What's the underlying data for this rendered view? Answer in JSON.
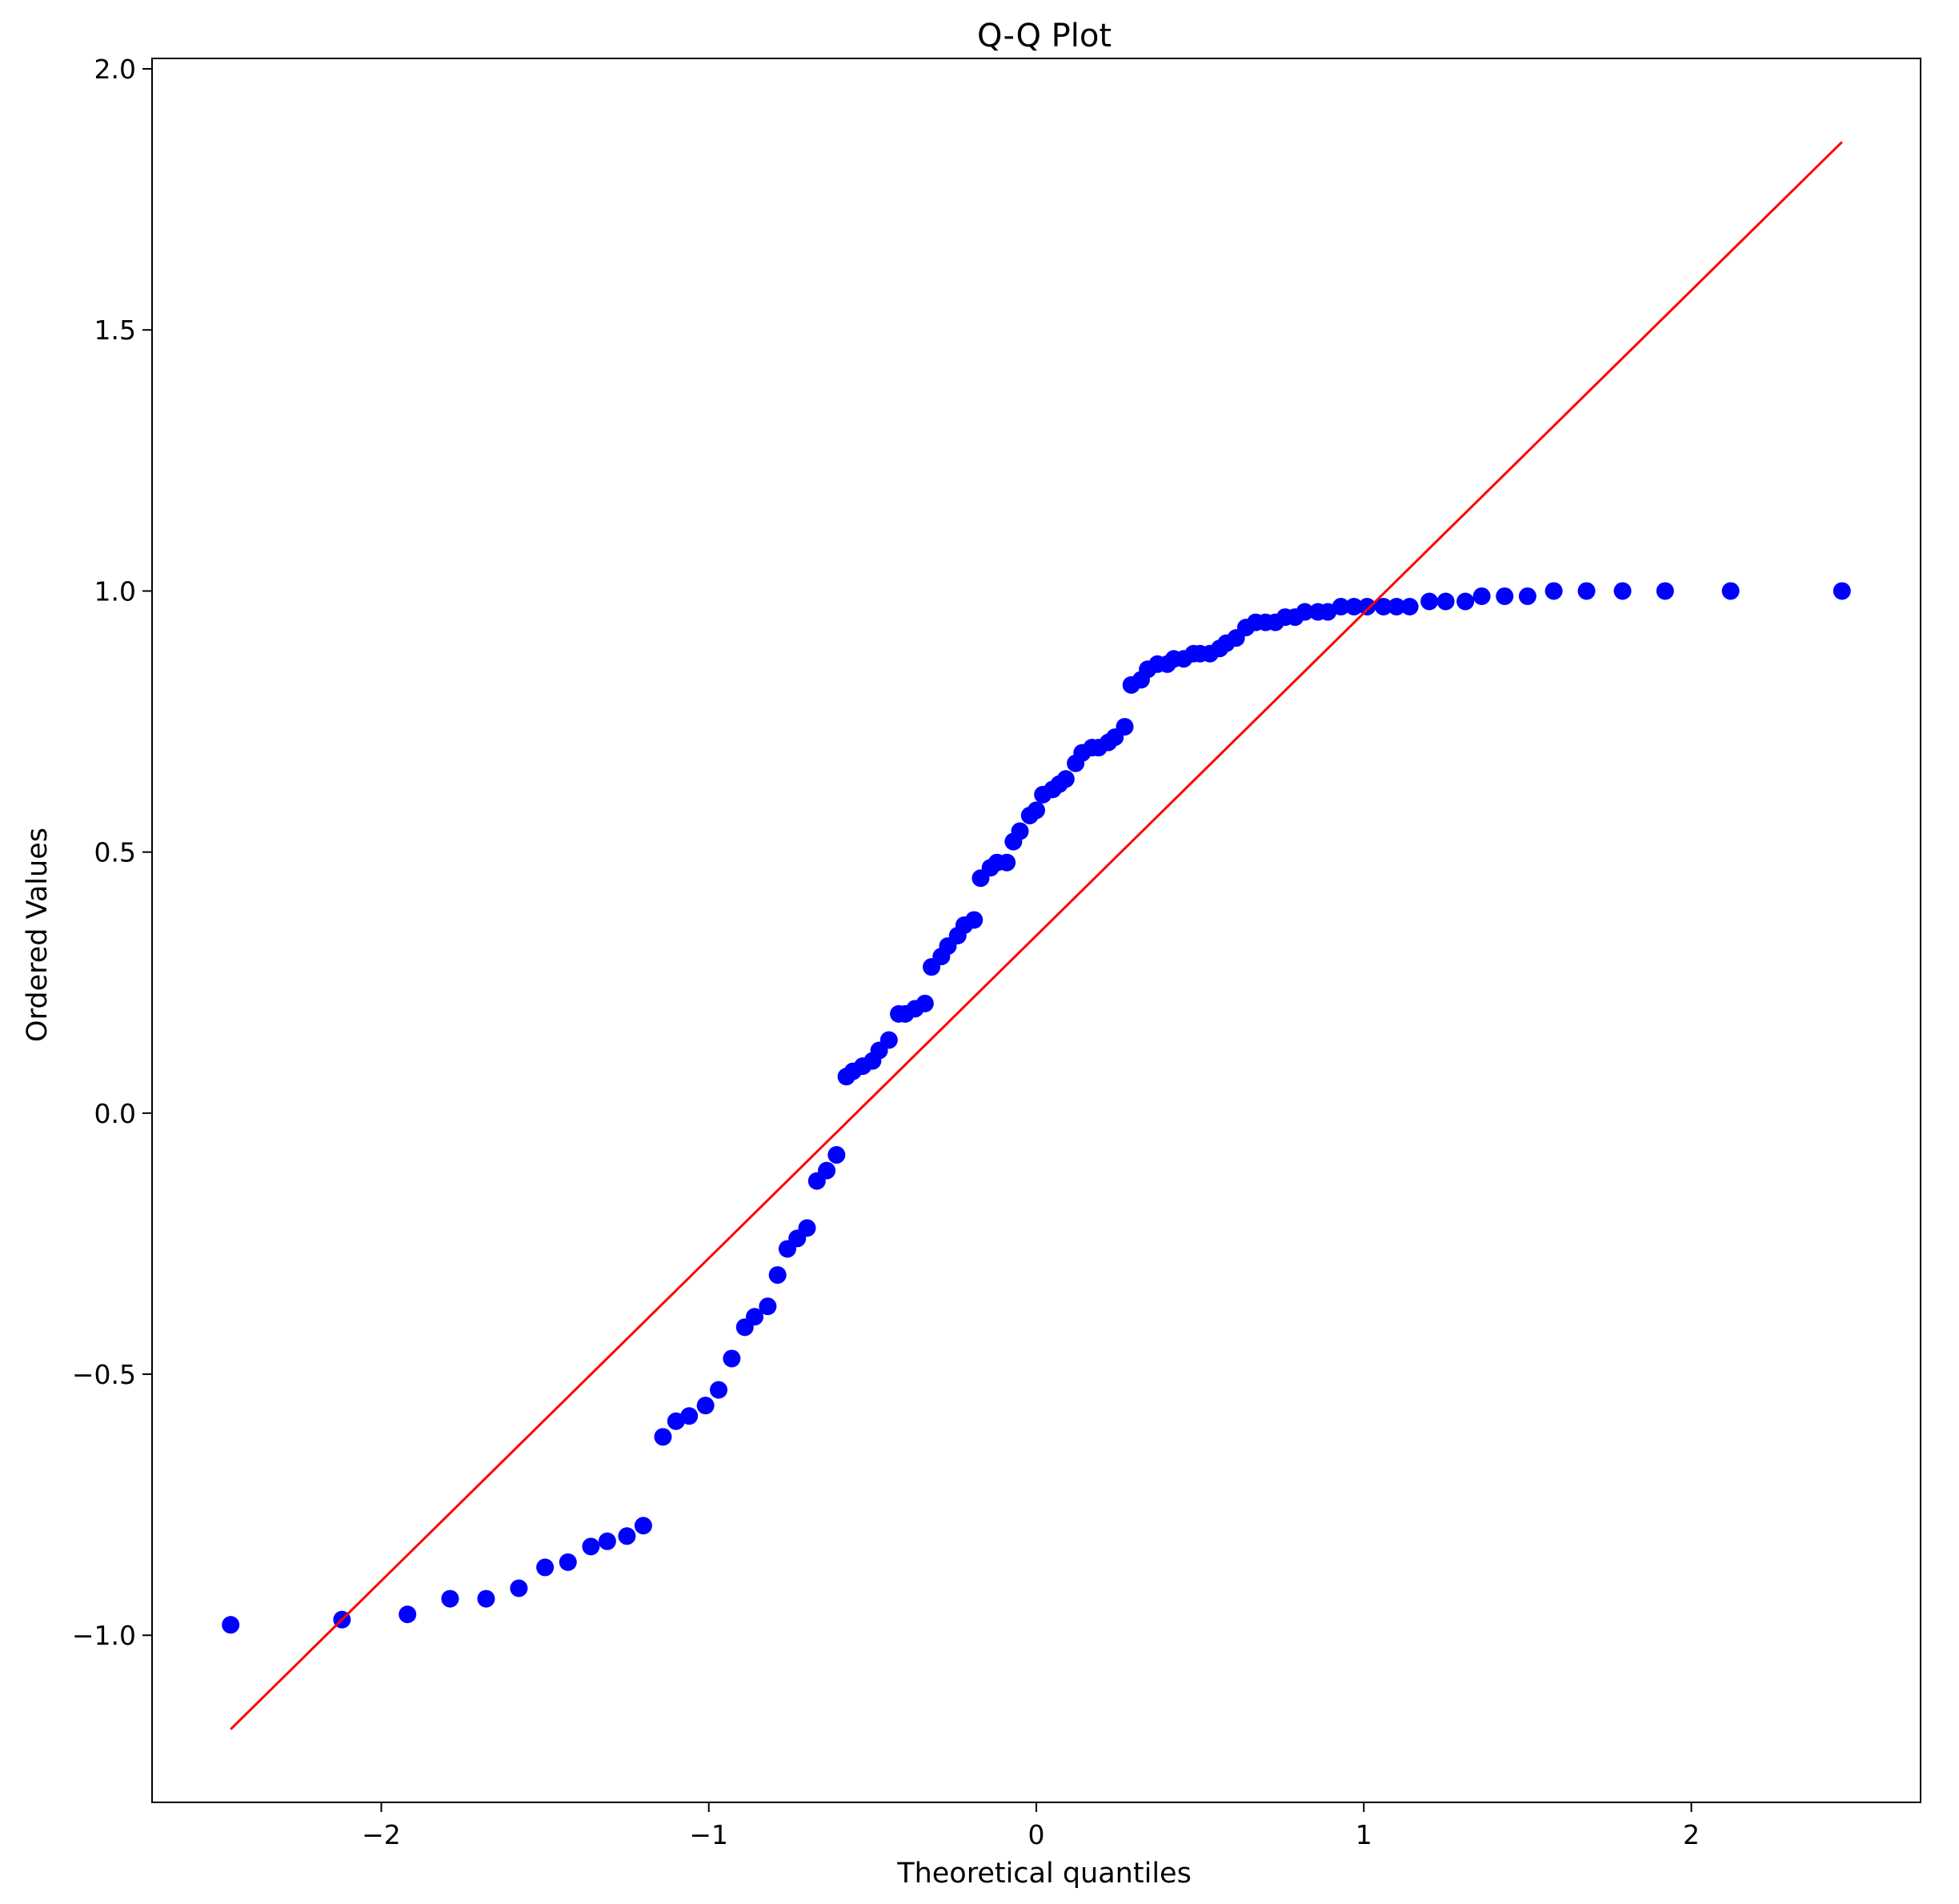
{
  "chart_data": {
    "type": "scatter",
    "title": "Q-Q Plot",
    "xlabel": "Theoretical quantiles",
    "ylabel": "Ordered Values",
    "xlim": [
      -2.7,
      2.7
    ],
    "ylim": [
      -1.32,
      2.02
    ],
    "x_ticks": [
      -2,
      -1,
      0,
      1,
      2
    ],
    "x_tick_labels": [
      "−2",
      "−1",
      "0",
      "1",
      "2"
    ],
    "y_ticks": [
      -1.0,
      -0.5,
      0.0,
      0.5,
      1.0,
      1.5,
      2.0
    ],
    "y_tick_labels": [
      "−1.0",
      "−0.5",
      "0.0",
      "0.5",
      "1.0",
      "1.5",
      "2.0"
    ],
    "grid": false,
    "legend": "none",
    "series": [
      {
        "kind": "points",
        "color": "#0000ff",
        "x": [
          -2.46,
          -2.12,
          -1.92,
          -1.79,
          -1.68,
          -1.58,
          -1.5,
          -1.43,
          -1.36,
          -1.31,
          -1.25,
          -1.2,
          -1.14,
          -1.1,
          -1.06,
          -1.01,
          -0.97,
          -0.93,
          -0.89,
          -0.86,
          -0.82,
          -0.79,
          -0.76,
          -0.73,
          -0.7,
          -0.67,
          -0.64,
          -0.61,
          -0.58,
          -0.56,
          -0.53,
          -0.5,
          -0.48,
          -0.45,
          -0.42,
          -0.4,
          -0.37,
          -0.34,
          -0.32,
          -0.29,
          -0.27,
          -0.24,
          -0.22,
          -0.19,
          -0.17,
          -0.14,
          -0.12,
          -0.09,
          -0.07,
          -0.05,
          -0.02,
          0.0,
          0.02,
          0.05,
          0.07,
          0.09,
          0.12,
          0.14,
          0.17,
          0.19,
          0.22,
          0.24,
          0.27,
          0.29,
          0.32,
          0.34,
          0.37,
          0.4,
          0.42,
          0.45,
          0.48,
          0.5,
          0.53,
          0.56,
          0.58,
          0.61,
          0.64,
          0.67,
          0.7,
          0.73,
          0.76,
          0.79,
          0.82,
          0.86,
          0.89,
          0.93,
          0.97,
          1.01,
          1.06,
          1.1,
          1.14,
          1.2,
          1.25,
          1.31,
          1.36,
          1.43,
          1.5,
          1.58,
          1.68,
          1.79,
          1.92,
          2.12,
          2.46
        ],
        "y": [
          -0.98,
          -0.97,
          -0.96,
          -0.93,
          -0.93,
          -0.91,
          -0.87,
          -0.86,
          -0.83,
          -0.82,
          -0.81,
          -0.79,
          -0.62,
          -0.59,
          -0.58,
          -0.56,
          -0.53,
          -0.47,
          -0.41,
          -0.39,
          -0.37,
          -0.31,
          -0.26,
          -0.24,
          -0.22,
          -0.13,
          -0.11,
          -0.08,
          0.07,
          0.08,
          0.09,
          0.1,
          0.12,
          0.14,
          0.19,
          0.19,
          0.2,
          0.21,
          0.28,
          0.3,
          0.32,
          0.34,
          0.36,
          0.37,
          0.45,
          0.47,
          0.48,
          0.48,
          0.52,
          0.54,
          0.57,
          0.58,
          0.61,
          0.62,
          0.63,
          0.64,
          0.67,
          0.69,
          0.7,
          0.7,
          0.71,
          0.72,
          0.74,
          0.82,
          0.83,
          0.85,
          0.86,
          0.86,
          0.87,
          0.87,
          0.88,
          0.88,
          0.88,
          0.89,
          0.9,
          0.91,
          0.93,
          0.94,
          0.94,
          0.94,
          0.95,
          0.95,
          0.96,
          0.96,
          0.96,
          0.97,
          0.97,
          0.97,
          0.97,
          0.97,
          0.97,
          0.98,
          0.98,
          0.98,
          0.99,
          0.99,
          0.99,
          1.0,
          1.0,
          1.0,
          1.0,
          1.0,
          1.0
        ]
      },
      {
        "kind": "fit-line",
        "color": "#ff0000",
        "x": [
          -2.46,
          2.46
        ],
        "y": [
          -1.18,
          1.86
        ]
      }
    ]
  }
}
